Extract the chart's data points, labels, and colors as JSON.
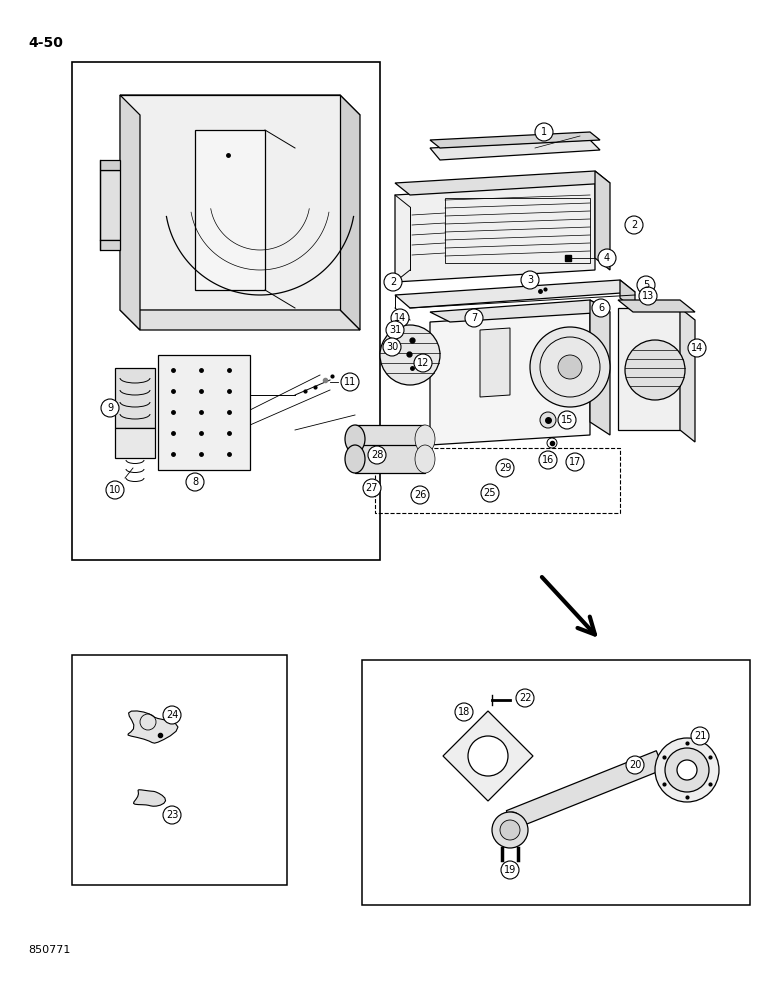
{
  "page_label": "4-50",
  "footer_label": "850771",
  "bg_color": "#ffffff",
  "fig_width": 7.8,
  "fig_height": 10.0,
  "dpi": 100,
  "lw": 0.9
}
